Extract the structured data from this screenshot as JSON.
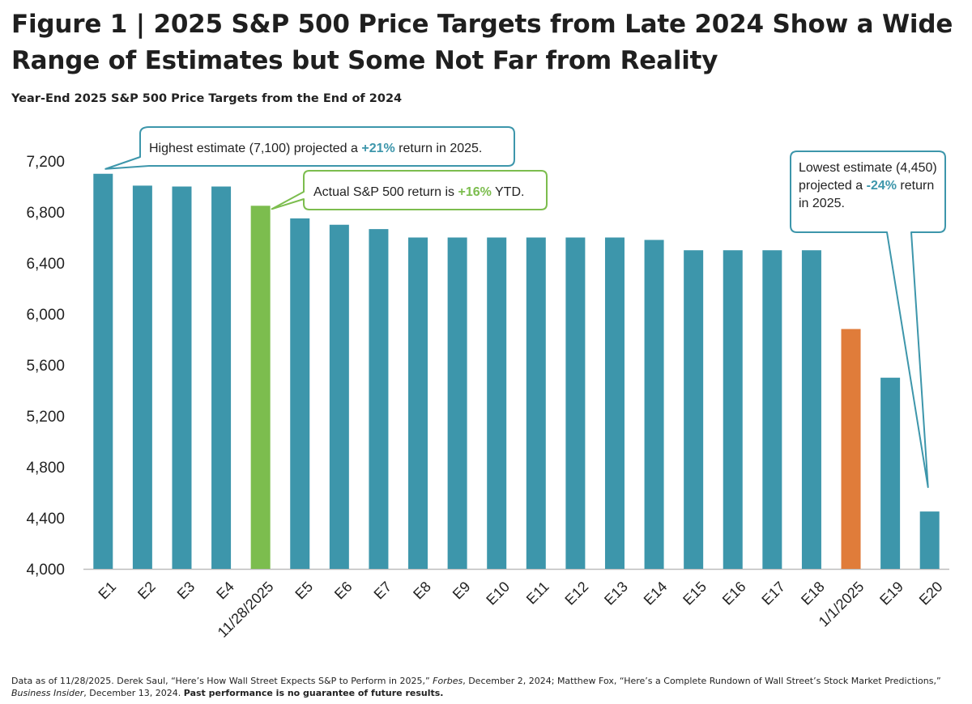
{
  "header": {
    "title_line1": "Figure 1 | 2025 S&P 500 Price Targets from Late 2024 Show a Wide",
    "title_line2": "Range of Estimates but Some Not Far from Reality",
    "subtitle": "Year-End 2025 S&P 500 Price Targets from the End of 2024"
  },
  "chart_data": {
    "type": "bar",
    "title": "Year-End 2025 S&P 500 Price Targets from the End of 2024",
    "xlabel": "",
    "ylabel": "",
    "ylim": [
      4000,
      7400
    ],
    "yticks": [
      4000,
      4400,
      4800,
      5200,
      5600,
      6000,
      6400,
      6800,
      7200
    ],
    "ytick_labels": [
      "4,000",
      "4,400",
      "4,800",
      "5,200",
      "5,600",
      "6,000",
      "6,400",
      "6,800",
      "7,200"
    ],
    "grid": false,
    "categories": [
      "E1",
      "E2",
      "E3",
      "E4",
      "11/28/2025",
      "E5",
      "E6",
      "E7",
      "E8",
      "E9",
      "E10",
      "E11",
      "E12",
      "E13",
      "E14",
      "E15",
      "E16",
      "E17",
      "E18",
      "1/1/2025",
      "E19",
      "E20"
    ],
    "values": [
      7100,
      7007,
      7000,
      7000,
      6849,
      6750,
      6700,
      6666,
      6600,
      6600,
      6600,
      6600,
      6600,
      6600,
      6581,
      6500,
      6500,
      6500,
      6500,
      5882,
      5500,
      4450
    ],
    "bar_kinds": [
      "estimate",
      "estimate",
      "estimate",
      "estimate",
      "actual",
      "estimate",
      "estimate",
      "estimate",
      "estimate",
      "estimate",
      "estimate",
      "estimate",
      "estimate",
      "estimate",
      "estimate",
      "estimate",
      "estimate",
      "estimate",
      "estimate",
      "start",
      "estimate",
      "estimate"
    ],
    "colors": {
      "estimate": "#3d96ab",
      "actual": "#7cbd4e",
      "start": "#e07c3a",
      "axis": "#bdbdbd",
      "callout_blue": "#3d96ab",
      "callout_green": "#7cbd4e"
    },
    "annotations": [
      {
        "id": "highest",
        "target": "E1",
        "style": "blue",
        "parts": [
          {
            "text": "Highest estimate (7,100) projected a "
          },
          {
            "text": "+21%",
            "accent": "blue"
          },
          {
            "text": " return in 2025."
          }
        ]
      },
      {
        "id": "actual",
        "target": "11/28/2025",
        "style": "green",
        "parts": [
          {
            "text": "Actual S&P 500 return is "
          },
          {
            "text": "+16%",
            "accent": "green"
          },
          {
            "text": " YTD."
          }
        ]
      },
      {
        "id": "lowest",
        "target": "E20",
        "style": "blue",
        "lines": [
          [
            {
              "text": "Lowest estimate (4,450)"
            }
          ],
          [
            {
              "text": "projected a "
            },
            {
              "text": "-24%",
              "accent": "blue"
            },
            {
              "text": " return"
            }
          ],
          [
            {
              "text": "in 2025."
            }
          ]
        ]
      }
    ]
  },
  "footnote": {
    "part1": "Data as of 11/28/2025. Derek Saul, “Here’s How Wall Street Expects S&P to Perform in 2025,” ",
    "forbes": "Forbes",
    "part2": ", December 2, 2024; Matthew Fox, “Here’s a Complete Rundown of Wall Street’s Stock Market Predictions,” ",
    "bi": "Business Insider",
    "part3": ", December 13, 2024. ",
    "bold": "Past performance is no guarantee of future results."
  }
}
